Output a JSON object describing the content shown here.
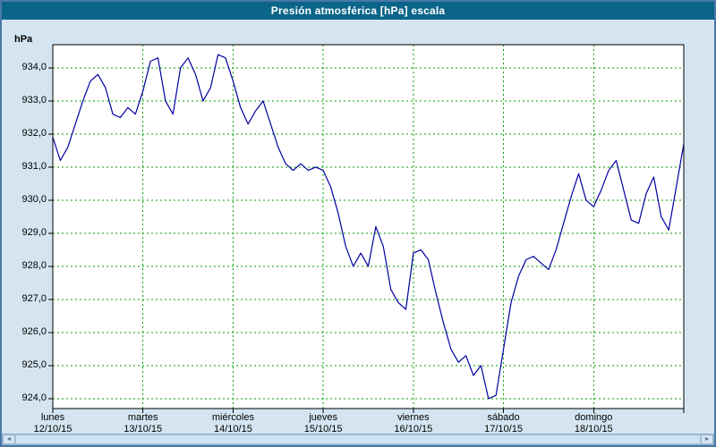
{
  "window": {
    "title": "Presión atmosférica [hPa] escala",
    "title_bar_color": "#0b6589",
    "background_color": "#d4e5f1",
    "border_color": "#4878a8"
  },
  "chart_data": {
    "type": "line",
    "title": "Presión atmosférica [hPa] escala",
    "xlabel": "",
    "ylabel": "hPa",
    "ylim": [
      923.7,
      934.7
    ],
    "x_total_hours": 168,
    "grid": true,
    "grid_color": "#00a000",
    "plot_bg_color": "#ffffff",
    "plot_border_color": "#000000",
    "y_ticks": [
      {
        "value": 934.0,
        "label": "934,0"
      },
      {
        "value": 933.0,
        "label": "933,0"
      },
      {
        "value": 932.0,
        "label": "932,0"
      },
      {
        "value": 931.0,
        "label": "931,0"
      },
      {
        "value": 930.0,
        "label": "930,0"
      },
      {
        "value": 929.0,
        "label": "929,0"
      },
      {
        "value": 928.0,
        "label": "928,0"
      },
      {
        "value": 927.0,
        "label": "927,0"
      },
      {
        "value": 926.0,
        "label": "926,0"
      },
      {
        "value": 925.0,
        "label": "925,0"
      },
      {
        "value": 924.0,
        "label": "924,0"
      }
    ],
    "days": [
      {
        "name": "lunes",
        "date": "12/10/15"
      },
      {
        "name": "martes",
        "date": "13/10/15"
      },
      {
        "name": "miércoles",
        "date": "14/10/15"
      },
      {
        "name": "jueves",
        "date": "15/10/15"
      },
      {
        "name": "viernes",
        "date": "16/10/15"
      },
      {
        "name": "sábado",
        "date": "17/10/15"
      },
      {
        "name": "domingo",
        "date": "18/10/15"
      }
    ],
    "series": [
      {
        "name": "Presión atmosférica",
        "color": "#0000a0",
        "start_hour": 0,
        "step_hours": 2,
        "values": [
          931.9,
          931.2,
          931.6,
          932.3,
          933.0,
          933.6,
          933.8,
          933.4,
          932.6,
          932.5,
          932.8,
          932.6,
          933.3,
          934.2,
          934.3,
          933.0,
          932.6,
          934.0,
          934.3,
          933.8,
          933.0,
          933.4,
          934.4,
          934.3,
          933.6,
          932.8,
          932.3,
          932.7,
          933.0,
          932.3,
          931.6,
          931.1,
          930.9,
          931.1,
          930.9,
          931.0,
          930.9,
          930.4,
          929.6,
          928.6,
          928.0,
          928.4,
          928.0,
          929.2,
          928.6,
          927.3,
          926.9,
          926.7,
          928.4,
          928.5,
          928.2,
          927.2,
          926.3,
          925.5,
          925.1,
          925.3,
          924.7,
          925.0,
          924.0,
          924.1,
          925.5,
          926.9,
          927.7,
          928.2,
          928.3,
          928.1,
          927.9,
          928.5,
          929.3,
          930.1,
          930.8,
          930.0,
          929.8,
          930.3,
          930.9,
          931.2,
          930.3,
          929.4,
          929.3,
          930.2,
          930.7,
          929.5,
          929.1,
          930.4,
          931.7
        ]
      }
    ]
  },
  "scrollbar": {
    "left_arrow": "◄",
    "right_arrow": "►"
  }
}
